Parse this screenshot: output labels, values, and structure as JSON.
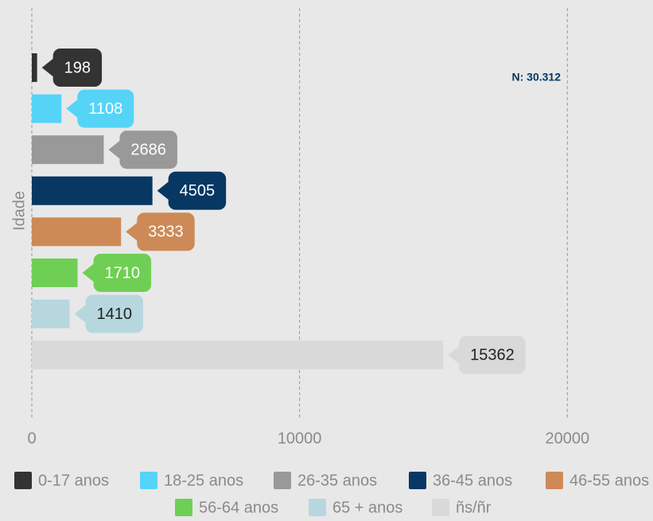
{
  "chart_data": {
    "type": "bar",
    "orientation": "horizontal",
    "y_label": "Idade",
    "annotation": "N: 30.312",
    "categories": [
      "0-17 anos",
      "18-25 anos",
      "26-35 anos",
      "36-45 anos",
      "46-55 anos",
      "56-64 anos",
      "65 + anos",
      "ñs/ñr"
    ],
    "values": [
      198,
      1108,
      2686,
      4505,
      3333,
      1710,
      1410,
      15362
    ],
    "colors": [
      "#333333",
      "#55d4f7",
      "#999999",
      "#073763",
      "#cd8a57",
      "#6fcf54",
      "#b7d7df",
      "#d9d9d9"
    ],
    "value_label_colors": [
      "#ffffff",
      "#ffffff",
      "#ffffff",
      "#ffffff",
      "#ffffff",
      "#ffffff",
      "#222222",
      "#222222"
    ],
    "xlim": [
      0,
      23200
    ],
    "xticks": [
      0,
      10000,
      20000
    ],
    "grid": true,
    "legend": "bottom"
  }
}
